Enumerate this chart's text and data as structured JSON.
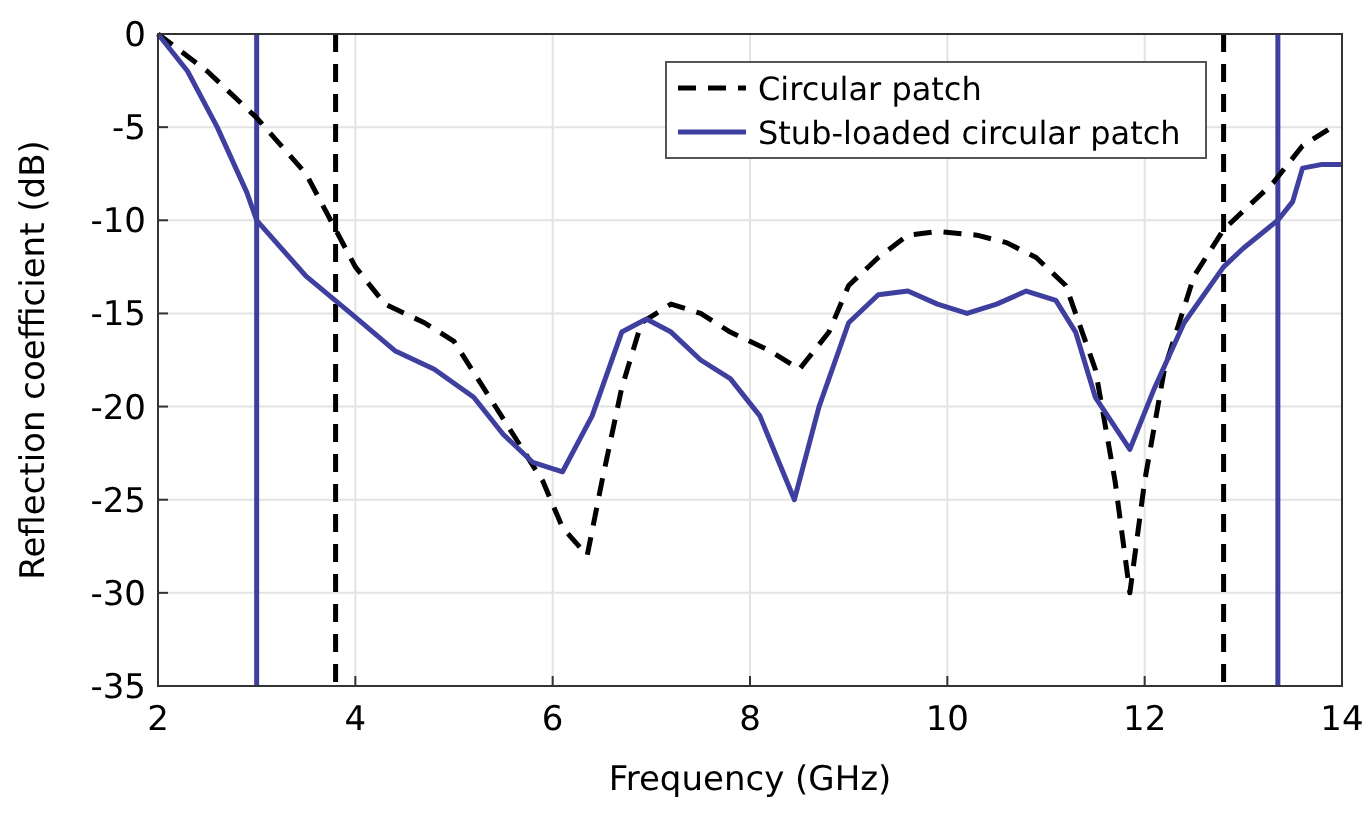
{
  "chart_data": {
    "type": "line",
    "xlabel": "Frequency (GHz)",
    "ylabel": "Reflection coefficient (dB)",
    "xlim": [
      2,
      14
    ],
    "xticks": [
      2,
      4,
      6,
      8,
      10,
      12,
      14
    ],
    "ylim": [
      -35,
      0
    ],
    "yticks": [
      -35,
      -30,
      -25,
      -20,
      -15,
      -10,
      -5,
      0
    ],
    "grid": true,
    "legend": "top right",
    "series": [
      {
        "name": "Circular patch",
        "color": "#000000",
        "line_style": "dashed",
        "x": [
          2,
          2.5,
          3,
          3.5,
          3.8,
          4,
          4.3,
          4.7,
          5,
          5.3,
          5.6,
          5.9,
          6.1,
          6.35,
          6.5,
          6.7,
          6.9,
          7.2,
          7.5,
          7.8,
          8.2,
          8.5,
          8.8,
          9,
          9.3,
          9.6,
          9.9,
          10.3,
          10.6,
          10.9,
          11.2,
          11.5,
          11.7,
          11.85,
          12,
          12.2,
          12.5,
          12.8,
          13,
          13.3,
          13.6,
          13.9
        ],
        "values": [
          0,
          -2,
          -4.5,
          -7.5,
          -10.5,
          -12.5,
          -14.5,
          -15.5,
          -16.5,
          -19,
          -21.5,
          -24,
          -26.5,
          -28,
          -24,
          -19,
          -15.5,
          -14.5,
          -15,
          -16,
          -17,
          -18,
          -16,
          -13.5,
          -12,
          -10.8,
          -10.6,
          -10.8,
          -11.2,
          -12,
          -13.5,
          -18,
          -24,
          -30,
          -24,
          -18,
          -13,
          -10.5,
          -9.5,
          -8,
          -6,
          -5
        ]
      },
      {
        "name": "Stub-loaded circular patch",
        "color": "#3f3f9f",
        "line_style": "solid",
        "x": [
          2,
          2.3,
          2.6,
          2.9,
          3,
          3.5,
          4,
          4.4,
          4.8,
          5.2,
          5.5,
          5.8,
          6.1,
          6.4,
          6.7,
          6.95,
          7.2,
          7.5,
          7.8,
          8.1,
          8.45,
          8.7,
          9,
          9.3,
          9.6,
          9.9,
          10.2,
          10.5,
          10.8,
          11.1,
          11.3,
          11.5,
          11.85,
          12.1,
          12.4,
          12.8,
          13,
          13.35,
          13.5,
          13.6,
          13.8,
          14
        ],
        "values": [
          0,
          -2,
          -5,
          -8.5,
          -10,
          -13,
          -15.2,
          -17,
          -18,
          -19.5,
          -21.5,
          -23,
          -23.5,
          -20.5,
          -16,
          -15.3,
          -16,
          -17.5,
          -18.5,
          -20.5,
          -25,
          -20,
          -15.5,
          -14,
          -13.8,
          -14.5,
          -15,
          -14.5,
          -13.8,
          -14.3,
          -16,
          -19.5,
          -22.3,
          -19,
          -15.5,
          -12.5,
          -11.5,
          -10,
          -9,
          -7.2,
          -7,
          -7
        ]
      }
    ],
    "ref_lines": [
      {
        "axis": "x",
        "value": 3,
        "color": "#3f3f9f",
        "line_style": "solid"
      },
      {
        "axis": "x",
        "value": 3.8,
        "color": "#000000",
        "line_style": "dashed"
      },
      {
        "axis": "x",
        "value": 12.8,
        "color": "#000000",
        "line_style": "dashed"
      },
      {
        "axis": "x",
        "value": 13.35,
        "color": "#3f3f9f",
        "line_style": "solid"
      }
    ]
  }
}
